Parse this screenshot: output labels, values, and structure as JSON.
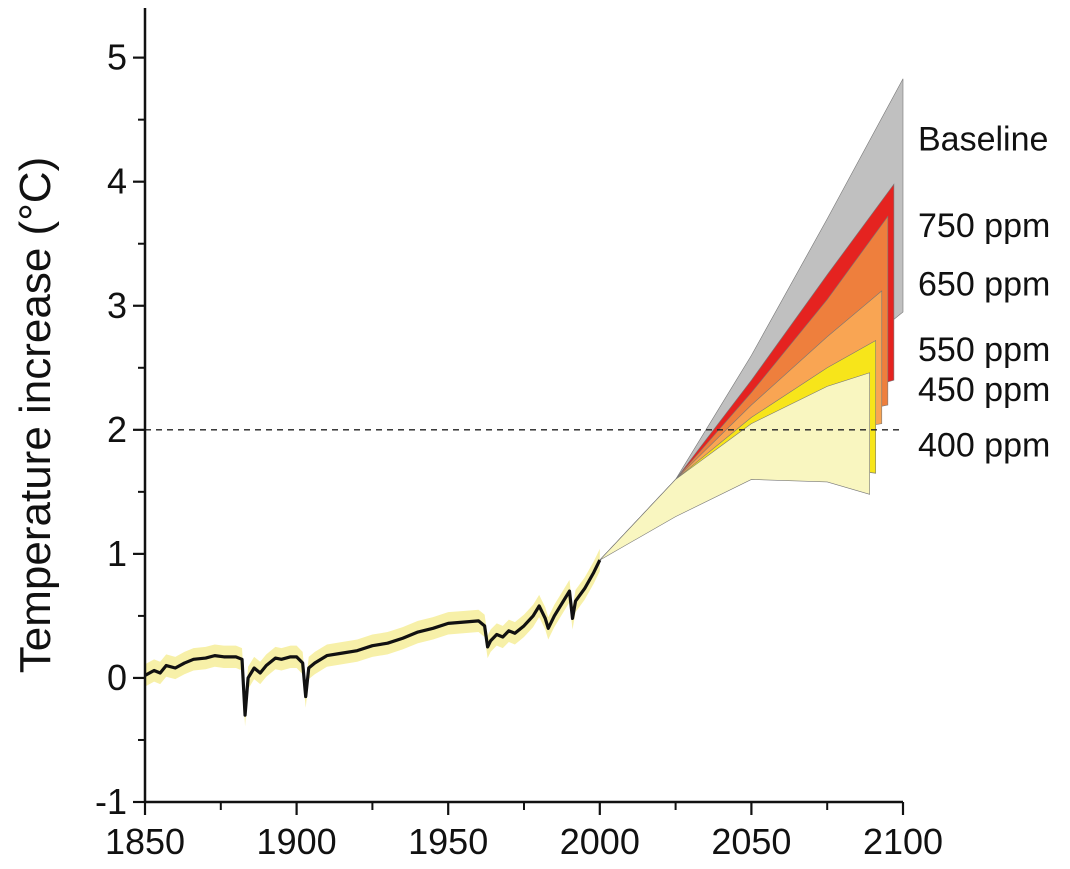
{
  "chart_data": {
    "type": "area",
    "title": "",
    "xlabel": "",
    "ylabel": "Temperature increase (°C)",
    "xlim": [
      1850,
      2100
    ],
    "ylim": [
      -1,
      5.4
    ],
    "x_ticks": [
      1850,
      1900,
      1950,
      2000,
      2050,
      2100
    ],
    "y_ticks": [
      -1,
      0,
      1,
      2,
      3,
      4,
      5
    ],
    "x_tick_labels": [
      "1850",
      "1900",
      "1950",
      "2000",
      "2050",
      "2100"
    ],
    "y_tick_labels": [
      "-1",
      "0",
      "1",
      "2",
      "3",
      "4",
      "5"
    ],
    "grid": false,
    "reference_line": {
      "y": 2,
      "style": "dashed"
    },
    "historical": {
      "line_color": "#111111",
      "band_color": "#f7f0a8",
      "x": [
        1850,
        1853,
        1855,
        1857,
        1860,
        1863,
        1866,
        1870,
        1873,
        1876,
        1880,
        1882,
        1883,
        1884,
        1886,
        1888,
        1890,
        1893,
        1895,
        1898,
        1900,
        1902,
        1903,
        1904,
        1906,
        1910,
        1915,
        1920,
        1925,
        1930,
        1935,
        1940,
        1945,
        1950,
        1955,
        1960,
        1962,
        1963,
        1964,
        1966,
        1968,
        1970,
        1972,
        1975,
        1978,
        1980,
        1982,
        1983,
        1985,
        1988,
        1990,
        1991,
        1992,
        1995,
        1998,
        2000
      ],
      "y": [
        0.02,
        0.06,
        0.04,
        0.1,
        0.08,
        0.12,
        0.15,
        0.16,
        0.18,
        0.17,
        0.17,
        0.15,
        -0.3,
        0.0,
        0.08,
        0.04,
        0.1,
        0.16,
        0.15,
        0.17,
        0.17,
        0.12,
        -0.15,
        0.08,
        0.12,
        0.18,
        0.2,
        0.22,
        0.26,
        0.28,
        0.32,
        0.37,
        0.4,
        0.44,
        0.45,
        0.46,
        0.42,
        0.25,
        0.3,
        0.35,
        0.33,
        0.38,
        0.36,
        0.42,
        0.5,
        0.58,
        0.48,
        0.4,
        0.5,
        0.62,
        0.7,
        0.48,
        0.62,
        0.72,
        0.85,
        0.95
      ],
      "band_width": 0.09
    },
    "scenarios": [
      {
        "name": "Baseline",
        "color": "#c0c0c0",
        "x": [
          2000,
          2025,
          2050,
          2075,
          2100
        ],
        "upper": [
          0.95,
          1.6,
          2.6,
          3.7,
          4.83
        ],
        "lower": [
          0.95,
          1.4,
          1.95,
          2.45,
          2.95
        ]
      },
      {
        "name": "750 ppm",
        "color": "#e52320",
        "x": [
          2000,
          2025,
          2050,
          2075,
          2097
        ],
        "upper": [
          0.95,
          1.6,
          2.4,
          3.25,
          3.98
        ],
        "lower": [
          0.95,
          1.55,
          2.1,
          2.25,
          2.4
        ]
      },
      {
        "name": "650 ppm",
        "color": "#ee7f3d",
        "x": [
          2000,
          2025,
          2050,
          2075,
          2095
        ],
        "upper": [
          0.95,
          1.6,
          2.3,
          3.05,
          3.72
        ],
        "lower": [
          0.95,
          1.55,
          2.0,
          2.1,
          2.2
        ]
      },
      {
        "name": "550 ppm",
        "color": "#f9a553",
        "x": [
          2000,
          2025,
          2050,
          2075,
          2093
        ],
        "upper": [
          0.95,
          1.6,
          2.2,
          2.75,
          3.12
        ],
        "lower": [
          0.95,
          1.5,
          1.9,
          1.98,
          2.05
        ]
      },
      {
        "name": "450 ppm",
        "color": "#f7e51a",
        "x": [
          2000,
          2025,
          2050,
          2075,
          2091
        ],
        "upper": [
          0.95,
          1.6,
          2.1,
          2.5,
          2.72
        ],
        "lower": [
          0.95,
          1.4,
          1.65,
          1.7,
          1.65
        ]
      },
      {
        "name": "400 ppm",
        "color": "#f9f6c0",
        "x": [
          2000,
          2025,
          2050,
          2075,
          2089
        ],
        "upper": [
          0.95,
          1.6,
          2.05,
          2.35,
          2.46
        ],
        "lower": [
          0.95,
          1.3,
          1.6,
          1.58,
          1.48
        ]
      }
    ]
  }
}
